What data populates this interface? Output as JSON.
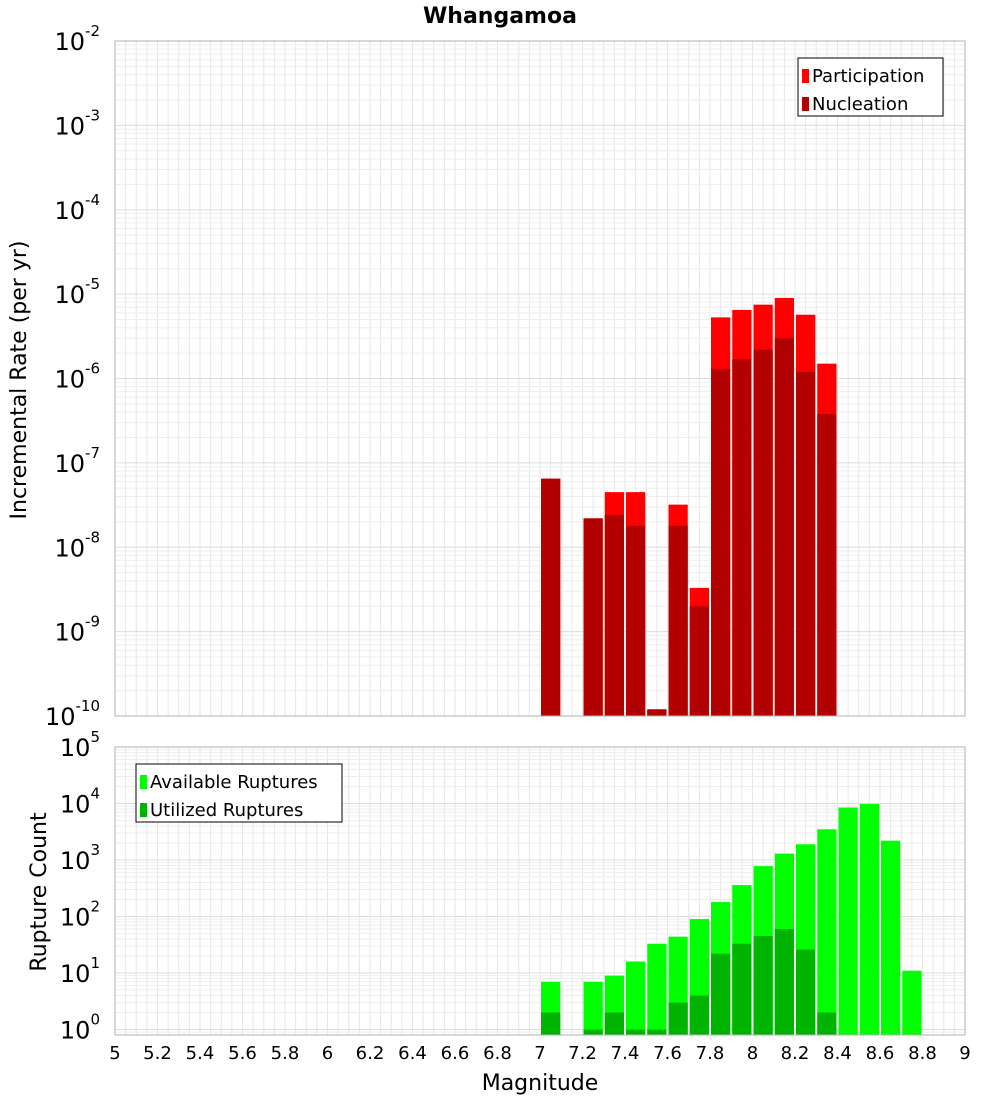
{
  "chart_data": [
    {
      "type": "bar",
      "title": "Whangamoa",
      "ylabel": "Incremental Rate (per yr)",
      "yscale": "log",
      "ylim": [
        1e-10,
        0.01
      ],
      "xlim": [
        5,
        9
      ],
      "bar_width": 0.1,
      "overlay": true,
      "legend_position": "top-right",
      "x": [
        7.05,
        7.15,
        7.25,
        7.35,
        7.45,
        7.55,
        7.65,
        7.75,
        7.85,
        7.95,
        8.05,
        8.15,
        8.25,
        8.35
      ],
      "series": [
        {
          "name": "Participation",
          "color": "#ff0000",
          "values": [
            6.5e-08,
            null,
            2.2e-08,
            4.5e-08,
            4.5e-08,
            1.2e-10,
            3.2e-08,
            3.3e-09,
            5.3e-06,
            6.5e-06,
            7.5e-06,
            9e-06,
            5.7e-06,
            1.5e-06
          ]
        },
        {
          "name": "Nucleation",
          "color": "#b30000",
          "values": [
            6.5e-08,
            null,
            2.2e-08,
            2.4e-08,
            1.8e-08,
            1.2e-10,
            1.8e-08,
            2e-09,
            1.3e-06,
            1.7e-06,
            2.2e-06,
            3e-06,
            1.2e-06,
            3.8e-07
          ]
        }
      ]
    },
    {
      "type": "bar",
      "title": "",
      "xlabel": "Magnitude",
      "ylabel": "Rupture Count",
      "yscale": "log",
      "ylim": [
        0.8,
        100000.0
      ],
      "xlim": [
        5,
        9
      ],
      "bar_width": 0.1,
      "overlay": true,
      "legend_position": "top-left",
      "x_ticks": [
        "5",
        "5.2",
        "5.4",
        "5.6",
        "5.8",
        "6",
        "6.2",
        "6.4",
        "6.6",
        "6.8",
        "7",
        "7.2",
        "7.4",
        "7.6",
        "7.8",
        "8",
        "8.2",
        "8.4",
        "8.6",
        "8.8",
        "9"
      ],
      "x": [
        7.05,
        7.15,
        7.25,
        7.35,
        7.45,
        7.55,
        7.65,
        7.75,
        7.85,
        7.95,
        8.05,
        8.15,
        8.25,
        8.35,
        8.45,
        8.55,
        8.65,
        8.75
      ],
      "series": [
        {
          "name": "Available Ruptures",
          "color": "#00ff00",
          "values": [
            7,
            null,
            7,
            9,
            16,
            33,
            44,
            90,
            180,
            360,
            780,
            1300,
            1900,
            3500,
            8500,
            9800,
            2200,
            11
          ]
        },
        {
          "name": "Utilized Ruptures",
          "color": "#00b300",
          "values": [
            2,
            null,
            1,
            2,
            1,
            1,
            3,
            4,
            22,
            33,
            45,
            60,
            26,
            2,
            null,
            null,
            null,
            null
          ]
        }
      ]
    }
  ]
}
